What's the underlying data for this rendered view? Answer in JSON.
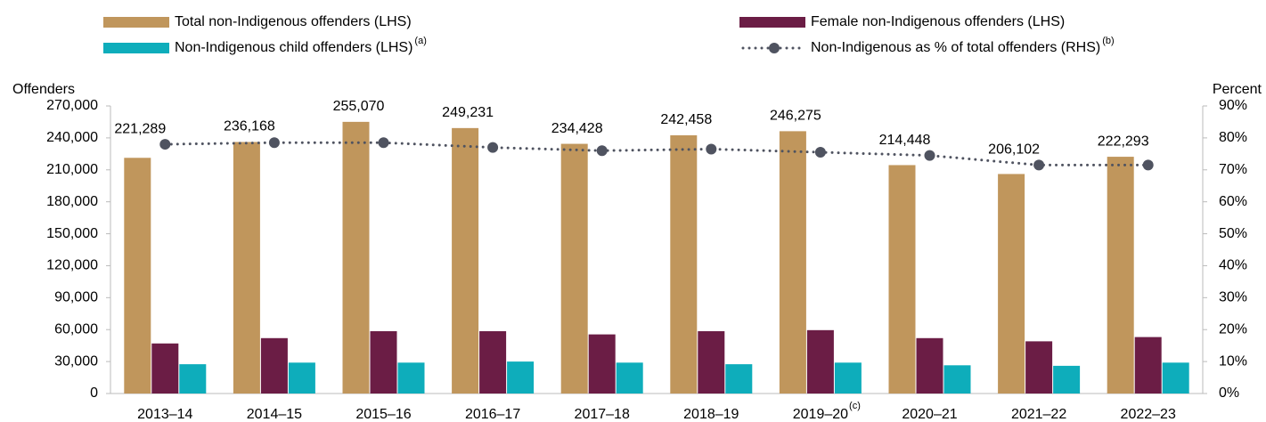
{
  "chart_data": {
    "type": "bar",
    "y_label": "Offenders",
    "y2_label": "Percent",
    "categories": [
      "2013–14",
      "2014–15",
      "2015–16",
      "2016–17",
      "2017–18",
      "2018–19",
      "2019–20",
      "2020–21",
      "2021–22",
      "2022–23"
    ],
    "category_notes": [
      null,
      null,
      null,
      null,
      null,
      null,
      "(c)",
      null,
      null,
      null
    ],
    "series": [
      {
        "name": "Total non-Indigenous offenders (LHS)",
        "color": "#c0965c",
        "type": "bar",
        "values": [
          221289,
          236168,
          255070,
          249231,
          234428,
          242458,
          246275,
          214448,
          206102,
          222293
        ],
        "value_labels": [
          "221,289",
          "236,168",
          "255,070",
          "249,231",
          "234,428",
          "242,458",
          "246,275",
          "214,448",
          "206,102",
          "222,293"
        ]
      },
      {
        "name": "Female non-Indigenous offenders (LHS)",
        "color": "#6b1d45",
        "type": "bar",
        "values": [
          47000,
          52000,
          58500,
          58500,
          55500,
          58500,
          59500,
          52000,
          49000,
          53000
        ]
      },
      {
        "name": "Non-Indigenous child offenders (LHS)",
        "note": "(a)",
        "color": "#0eadbb",
        "type": "bar",
        "values": [
          27500,
          29000,
          29000,
          30000,
          29000,
          27500,
          29000,
          26500,
          26000,
          29000
        ]
      },
      {
        "name": "Non-Indigenous as % of total offenders (RHS)",
        "note": "(b)",
        "color": "#4f5360",
        "type": "line",
        "axis": "y2",
        "values": [
          78,
          78.5,
          78.5,
          77,
          76,
          76.5,
          75.5,
          74.5,
          71.5,
          71.5
        ]
      }
    ],
    "ylim": [
      0,
      270000
    ],
    "yticks": [
      0,
      {
        "value": 30000,
        "label": "30,000"
      },
      {
        "value": 60000,
        "label": "60,000"
      },
      {
        "value": 90000,
        "label": "90,000"
      },
      {
        "value": 120000,
        "label": "120,000"
      },
      {
        "value": 150000,
        "label": "150,000"
      },
      {
        "value": 180000,
        "label": "180,000"
      },
      {
        "value": 210000,
        "label": "210,000"
      },
      {
        "value": 240000,
        "label": "240,000"
      },
      {
        "value": 270000,
        "label": "270,000"
      }
    ],
    "y2lim": [
      0,
      90
    ],
    "y2ticks": [
      {
        "value": 0,
        "label": "0%"
      },
      {
        "value": 10,
        "label": "10%"
      },
      {
        "value": 20,
        "label": "20%"
      },
      {
        "value": 30,
        "label": "30%"
      },
      {
        "value": 40,
        "label": "40%"
      },
      {
        "value": 50,
        "label": "50%"
      },
      {
        "value": 60,
        "label": "60%"
      },
      {
        "value": 70,
        "label": "70%"
      },
      {
        "value": 80,
        "label": "80%"
      },
      {
        "value": 90,
        "label": "90%"
      }
    ],
    "grid": false
  }
}
